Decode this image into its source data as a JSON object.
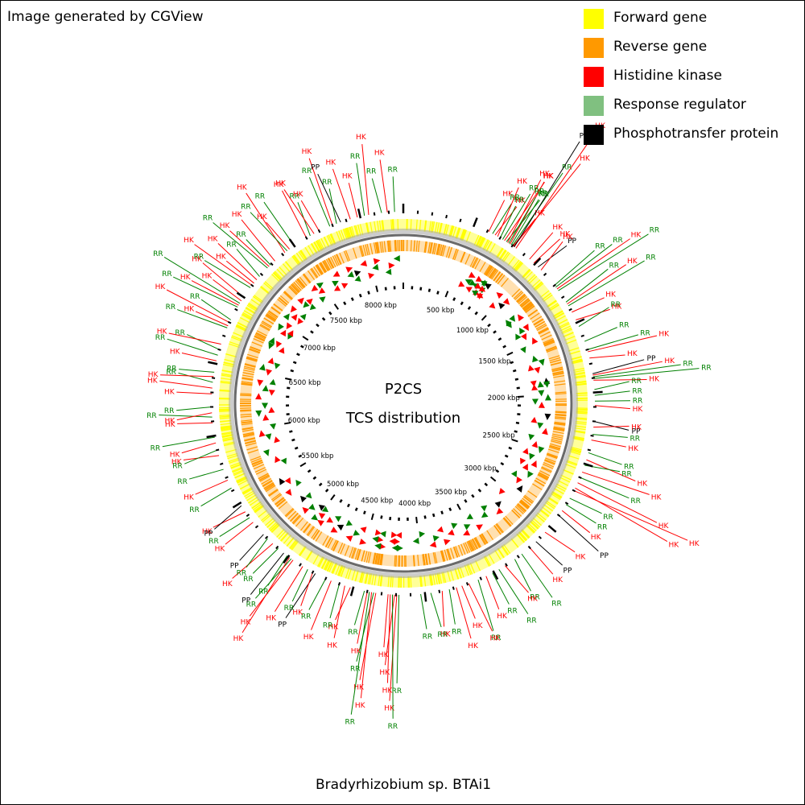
{
  "credit": "Image generated by CGView",
  "legend": [
    {
      "label": "Forward gene",
      "color": "#ffff00"
    },
    {
      "label": "Reverse gene",
      "color": "#ff9900"
    },
    {
      "label": "Histidine kinase",
      "color": "#ff0000"
    },
    {
      "label": "Response regulator",
      "color": "#80c080"
    },
    {
      "label": "Phosphotransfer protein",
      "color": "#000000"
    }
  ],
  "center": {
    "line1": "P2CS",
    "line2": "TCS distribution"
  },
  "organism": "Bradyrhizobium sp. BTAi1",
  "colors": {
    "hk": "#ff0000",
    "rr": "#008000",
    "pp": "#000000",
    "forward": "#ffff00",
    "reverse": "#ff9900",
    "backbone": "#888888"
  },
  "map": {
    "genome_length_kbp": 8300,
    "tick_labels": [
      "500 kbp",
      "1000 kbp",
      "1500 kbp",
      "2000 kbp",
      "2500 kbp",
      "3000 kbp",
      "3500 kbp",
      "4000 kbp",
      "4500 kbp",
      "5000 kbp",
      "5500 kbp",
      "6000 kbp",
      "6500 kbp",
      "7000 kbp",
      "7500 kbp",
      "8000 kbp"
    ],
    "tick_values_kbp": [
      500,
      1000,
      1500,
      2000,
      2500,
      3000,
      3500,
      4000,
      4500,
      5000,
      5500,
      6000,
      6500,
      7000,
      7500,
      8000
    ],
    "features": [
      {
        "t": "HK",
        "kbp": 780,
        "d": 3
      },
      {
        "t": "RR",
        "kbp": 790,
        "d": 2
      },
      {
        "t": "RR",
        "kbp": 800,
        "d": 4
      },
      {
        "t": "HK",
        "kbp": 805,
        "d": 1
      },
      {
        "t": "HK",
        "kbp": 810,
        "d": 5
      },
      {
        "t": "PP",
        "kbp": 815,
        "d": 6
      },
      {
        "t": "HK",
        "kbp": 830,
        "d": 7
      },
      {
        "t": "RR",
        "kbp": 720,
        "d": 2
      },
      {
        "t": "HK",
        "kbp": 735,
        "d": 3
      },
      {
        "t": "RR",
        "kbp": 750,
        "d": 2
      },
      {
        "t": "HK",
        "kbp": 760,
        "d": 3
      },
      {
        "t": "RR",
        "kbp": 770,
        "d": 2
      },
      {
        "t": "HK",
        "kbp": 610,
        "d": 1
      },
      {
        "t": "RR",
        "kbp": 640,
        "d": 1
      },
      {
        "t": "HK",
        "kbp": 660,
        "d": 1
      },
      {
        "t": "HK",
        "kbp": 680,
        "d": 2
      },
      {
        "t": "RR",
        "kbp": 700,
        "d": 1
      },
      {
        "t": "HK",
        "kbp": 950,
        "d": 1
      },
      {
        "t": "HK",
        "kbp": 990,
        "d": 1
      },
      {
        "t": "PP",
        "kbp": 1030,
        "d": 1
      },
      {
        "t": "HK",
        "kbp": 1060,
        "d": 1
      },
      {
        "t": "RR",
        "kbp": 1200,
        "d": 2
      },
      {
        "t": "RR",
        "kbp": 1215,
        "d": 3
      },
      {
        "t": "HK",
        "kbp": 1230,
        "d": 4
      },
      {
        "t": "RR",
        "kbp": 1245,
        "d": 5
      },
      {
        "t": "RR",
        "kbp": 1340,
        "d": 2
      },
      {
        "t": "HK",
        "kbp": 1355,
        "d": 3
      },
      {
        "t": "RR",
        "kbp": 1370,
        "d": 4
      },
      {
        "t": "HK",
        "kbp": 1420,
        "d": 1
      },
      {
        "t": "HK",
        "kbp": 1480,
        "d": 1
      },
      {
        "t": "RR",
        "kbp": 1530,
        "d": 1
      },
      {
        "t": "RR",
        "kbp": 1640,
        "d": 1
      },
      {
        "t": "RR",
        "kbp": 1700,
        "d": 2
      },
      {
        "t": "HK",
        "kbp": 1715,
        "d": 3
      },
      {
        "t": "HK",
        "kbp": 1760,
        "d": 1
      },
      {
        "t": "PP",
        "kbp": 1870,
        "d": 2
      },
      {
        "t": "HK",
        "kbp": 1880,
        "d": 3
      },
      {
        "t": "RR",
        "kbp": 1892,
        "d": 4
      },
      {
        "t": "RR",
        "kbp": 1904,
        "d": 5
      },
      {
        "t": "HK",
        "kbp": 1915,
        "d": 2
      },
      {
        "t": "RR",
        "kbp": 1980,
        "d": 1
      },
      {
        "t": "RR",
        "kbp": 2020,
        "d": 1
      },
      {
        "t": "RR",
        "kbp": 2060,
        "d": 1
      },
      {
        "t": "HK",
        "kbp": 2090,
        "d": 1
      },
      {
        "t": "PP",
        "kbp": 2200,
        "d": 1
      },
      {
        "t": "HK",
        "kbp": 2240,
        "d": 1
      },
      {
        "t": "RR",
        "kbp": 2290,
        "d": 1
      },
      {
        "t": "HK",
        "kbp": 2330,
        "d": 1
      },
      {
        "t": "RR",
        "kbp": 2420,
        "d": 1
      },
      {
        "t": "HK",
        "kbp": 2470,
        "d": 2
      },
      {
        "t": "RR",
        "kbp": 2510,
        "d": 1
      },
      {
        "t": "HK",
        "kbp": 2560,
        "d": 3
      },
      {
        "t": "RR",
        "kbp": 2600,
        "d": 2
      },
      {
        "t": "HK",
        "kbp": 2640,
        "d": 4
      },
      {
        "t": "HK",
        "kbp": 2680,
        "d": 5
      },
      {
        "t": "HK",
        "kbp": 2700,
        "d": 6
      },
      {
        "t": "RR",
        "kbp": 2760,
        "d": 1
      },
      {
        "t": "RR",
        "kbp": 2810,
        "d": 1
      },
      {
        "t": "HK",
        "kbp": 2860,
        "d": 1
      },
      {
        "t": "PP",
        "kbp": 2900,
        "d": 2
      },
      {
        "t": "HK",
        "kbp": 3050,
        "d": 1
      },
      {
        "t": "PP",
        "kbp": 3140,
        "d": 1
      },
      {
        "t": "HK",
        "kbp": 3200,
        "d": 1
      },
      {
        "t": "RR",
        "kbp": 3270,
        "d": 2
      },
      {
        "t": "RR",
        "kbp": 3330,
        "d": 1
      },
      {
        "t": "HK",
        "kbp": 3410,
        "d": 1
      },
      {
        "t": "RR",
        "kbp": 3460,
        "d": 2
      },
      {
        "t": "RR",
        "kbp": 3510,
        "d": 1
      },
      {
        "t": "HK",
        "kbp": 3560,
        "d": 1
      },
      {
        "t": "RR",
        "kbp": 3620,
        "d": 2
      },
      {
        "t": "HK",
        "kbp": 3690,
        "d": 2
      },
      {
        "t": "HK",
        "kbp": 3740,
        "d": 1
      },
      {
        "t": "HK",
        "kbp": 3780,
        "d": 2
      },
      {
        "t": "RR",
        "kbp": 3830,
        "d": 1
      },
      {
        "t": "HK",
        "kbp": 3880,
        "d": 1
      },
      {
        "t": "RR",
        "kbp": 3960,
        "d": 1
      },
      {
        "t": "RR",
        "kbp": 4030,
        "d": 1
      },
      {
        "t": "RR",
        "kbp": 4180,
        "d": 4
      },
      {
        "t": "HK",
        "kbp": 4195,
        "d": 5
      },
      {
        "t": "HK",
        "kbp": 4210,
        "d": 3
      },
      {
        "t": "RR",
        "kbp": 4225,
        "d": 6
      },
      {
        "t": "HK",
        "kbp": 4240,
        "d": 4
      },
      {
        "t": "HK",
        "kbp": 4255,
        "d": 2
      },
      {
        "t": "HK",
        "kbp": 4340,
        "d": 4
      },
      {
        "t": "RR",
        "kbp": 4355,
        "d": 3
      },
      {
        "t": "HK",
        "kbp": 4370,
        "d": 5
      },
      {
        "t": "RR",
        "kbp": 4385,
        "d": 6
      },
      {
        "t": "HK",
        "kbp": 4400,
        "d": 2
      },
      {
        "t": "RR",
        "kbp": 4420,
        "d": 1
      },
      {
        "t": "HK",
        "kbp": 4520,
        "d": 1
      },
      {
        "t": "HK",
        "kbp": 4560,
        "d": 2
      },
      {
        "t": "RR",
        "kbp": 4600,
        "d": 1
      },
      {
        "t": "HK",
        "kbp": 4660,
        "d": 2
      },
      {
        "t": "RR",
        "kbp": 4700,
        "d": 1
      },
      {
        "t": "PP",
        "kbp": 4780,
        "d": 2
      },
      {
        "t": "HK",
        "kbp": 4800,
        "d": 1
      },
      {
        "t": "RR",
        "kbp": 4840,
        "d": 1
      },
      {
        "t": "HK",
        "kbp": 4880,
        "d": 2
      },
      {
        "t": "HK",
        "kbp": 4960,
        "d": 3
      },
      {
        "t": "RR",
        "kbp": 4975,
        "d": 2
      },
      {
        "t": "HK",
        "kbp": 4990,
        "d": 4
      },
      {
        "t": "RR",
        "kbp": 5010,
        "d": 1
      },
      {
        "t": "PP",
        "kbp": 5040,
        "d": 2
      },
      {
        "t": "RR",
        "kbp": 5090,
        "d": 1
      },
      {
        "t": "HK",
        "kbp": 5140,
        "d": 2
      },
      {
        "t": "RR",
        "kbp": 5190,
        "d": 1
      },
      {
        "t": "PP",
        "kbp": 5230,
        "d": 1
      },
      {
        "t": "HK",
        "kbp": 5340,
        "d": 1
      },
      {
        "t": "RR",
        "kbp": 5380,
        "d": 1
      },
      {
        "t": "HK",
        "kbp": 5430,
        "d": 1
      },
      {
        "t": "PP",
        "kbp": 5480,
        "d": 1
      },
      {
        "t": "RR",
        "kbp": 5620,
        "d": 1
      },
      {
        "t": "HK",
        "kbp": 5680,
        "d": 1
      },
      {
        "t": "RR",
        "kbp": 5760,
        "d": 1
      },
      {
        "t": "HK",
        "kbp": 5860,
        "d": 1
      },
      {
        "t": "RR",
        "kbp": 5900,
        "d": 1
      },
      {
        "t": "HK",
        "kbp": 5950,
        "d": 1
      },
      {
        "t": "RR",
        "kbp": 5990,
        "d": 2
      },
      {
        "t": "HK",
        "kbp": 6090,
        "d": 1
      },
      {
        "t": "RR",
        "kbp": 6130,
        "d": 2
      },
      {
        "t": "HK",
        "kbp": 6160,
        "d": 1
      },
      {
        "t": "RR",
        "kbp": 6200,
        "d": 1
      },
      {
        "t": "HK",
        "kbp": 6290,
        "d": 1
      },
      {
        "t": "HK",
        "kbp": 6330,
        "d": 2
      },
      {
        "t": "RR",
        "kbp": 6370,
        "d": 1
      },
      {
        "t": "HK",
        "kbp": 6410,
        "d": 2
      },
      {
        "t": "RR",
        "kbp": 6440,
        "d": 1
      },
      {
        "t": "HK",
        "kbp": 6520,
        "d": 1
      },
      {
        "t": "RR",
        "kbp": 6560,
        "d": 2
      },
      {
        "t": "RR",
        "kbp": 6600,
        "d": 1
      },
      {
        "t": "HK",
        "kbp": 6640,
        "d": 2
      },
      {
        "t": "RR",
        "kbp": 6760,
        "d": 2
      },
      {
        "t": "HK",
        "kbp": 6775,
        "d": 1
      },
      {
        "t": "HK",
        "kbp": 6800,
        "d": 3
      },
      {
        "t": "RR",
        "kbp": 6820,
        "d": 1
      },
      {
        "t": "RR",
        "kbp": 6920,
        "d": 3
      },
      {
        "t": "HK",
        "kbp": 6935,
        "d": 2
      },
      {
        "t": "RR",
        "kbp": 6950,
        "d": 4
      },
      {
        "t": "HK",
        "kbp": 6970,
        "d": 1
      },
      {
        "t": "HK",
        "kbp": 7000,
        "d": 2
      },
      {
        "t": "RR",
        "kbp": 7080,
        "d": 2
      },
      {
        "t": "HK",
        "kbp": 7100,
        "d": 3
      },
      {
        "t": "HK",
        "kbp": 7120,
        "d": 1
      },
      {
        "t": "HK",
        "kbp": 7150,
        "d": 2
      },
      {
        "t": "RR",
        "kbp": 7180,
        "d": 1
      },
      {
        "t": "RR",
        "kbp": 7260,
        "d": 3
      },
      {
        "t": "HK",
        "kbp": 7275,
        "d": 2
      },
      {
        "t": "RR",
        "kbp": 7290,
        "d": 1
      },
      {
        "t": "HK",
        "kbp": 7330,
        "d": 2
      },
      {
        "t": "HK",
        "kbp": 7420,
        "d": 3
      },
      {
        "t": "RR",
        "kbp": 7440,
        "d": 2
      },
      {
        "t": "HK",
        "kbp": 7460,
        "d": 1
      },
      {
        "t": "RR",
        "kbp": 7500,
        "d": 2
      },
      {
        "t": "HK",
        "kbp": 7600,
        "d": 2
      },
      {
        "t": "RR",
        "kbp": 7630,
        "d": 1
      },
      {
        "t": "HK",
        "kbp": 7660,
        "d": 2
      },
      {
        "t": "HK",
        "kbp": 7700,
        "d": 1
      },
      {
        "t": "RR",
        "kbp": 7780,
        "d": 2
      },
      {
        "t": "HK",
        "kbp": 7800,
        "d": 3
      },
      {
        "t": "RR",
        "kbp": 7830,
        "d": 1
      },
      {
        "t": "PP",
        "kbp": 7860,
        "d": 2
      },
      {
        "t": "HK",
        "kbp": 7930,
        "d": 2
      },
      {
        "t": "HK",
        "kbp": 7980,
        "d": 1
      },
      {
        "t": "RR",
        "kbp": 8030,
        "d": 2
      },
      {
        "t": "HK",
        "kbp": 8060,
        "d": 3
      },
      {
        "t": "RR",
        "kbp": 8150,
        "d": 1
      },
      {
        "t": "HK",
        "kbp": 8190,
        "d": 2
      },
      {
        "t": "RR",
        "kbp": 8240,
        "d": 1
      }
    ]
  }
}
